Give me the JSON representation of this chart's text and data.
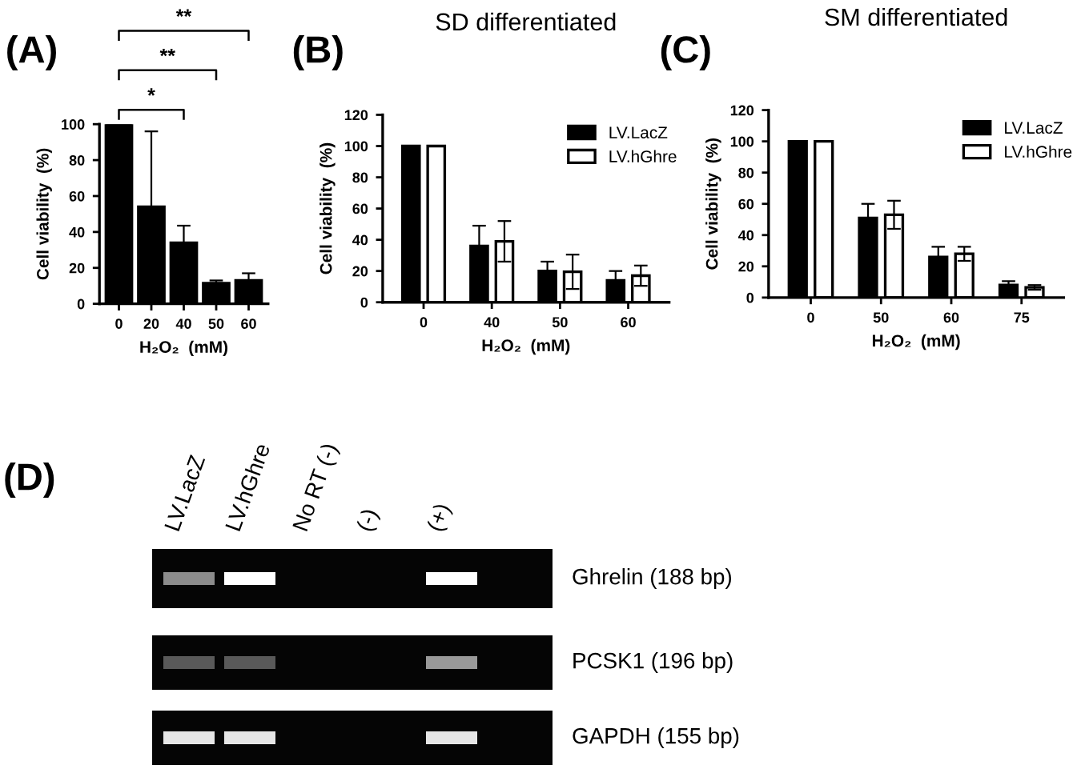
{
  "chart_data": [
    {
      "type": "bar",
      "categories": [
        "0",
        "20",
        "40",
        "50",
        "60"
      ],
      "values": [
        100,
        54,
        34,
        11.5,
        13
      ],
      "color": "#000000",
      "errors": [
        null,
        [
          54,
          96
        ],
        [
          34,
          43.5
        ],
        [
          11.5,
          13
        ],
        [
          13,
          17
        ]
      ],
      "xlabel": "H₂O₂  (mM)",
      "ylabel": "Cell viability  (%)",
      "ylim": [
        0,
        100
      ],
      "yticks": [
        0,
        20,
        40,
        60,
        80,
        100
      ],
      "annotations": [
        "(A)",
        "*",
        "**",
        "**"
      ],
      "grid": false,
      "legend": false
    },
    {
      "type": "bar",
      "title": "SD differentiated",
      "categories": [
        "0",
        "40",
        "50",
        "60"
      ],
      "series": [
        {
          "name": "LV.LacZ",
          "color": "#000000",
          "values": [
            100,
            36,
            20,
            14
          ],
          "errors": [
            null,
            13,
            6,
            6
          ]
        },
        {
          "name": "LV.hGhre",
          "color": "#ffffff",
          "values": [
            100,
            39,
            19.5,
            17
          ],
          "errors": [
            null,
            13,
            11,
            6.5
          ]
        }
      ],
      "xlabel": "H₂O₂  (mM)",
      "ylabel": "Cell viability  (%)",
      "ylim": [
        0,
        120
      ],
      "yticks": [
        0,
        20,
        40,
        60,
        80,
        100,
        120
      ],
      "annotations": [
        "(B)"
      ],
      "grid": false,
      "legend": "top right"
    },
    {
      "type": "bar",
      "title": "SM differentiated",
      "categories": [
        "0",
        "50",
        "60",
        "75"
      ],
      "series": [
        {
          "name": "LV.LacZ",
          "color": "#000000",
          "values": [
            100,
            51,
            26,
            8
          ],
          "errors": [
            null,
            9,
            6.5,
            2.5
          ]
        },
        {
          "name": "LV.hGhre",
          "color": "#ffffff",
          "values": [
            100,
            53,
            28,
            6.5
          ],
          "errors": [
            null,
            9,
            4.5,
            1.5
          ]
        }
      ],
      "xlabel": "H₂O₂  (mM)",
      "ylabel": "Cell viability  (%)",
      "ylim": [
        0,
        120
      ],
      "yticks": [
        0,
        20,
        40,
        60,
        80,
        100,
        120
      ],
      "annotations": [
        "(C)"
      ],
      "grid": false,
      "legend": "top right"
    },
    {
      "type": "other",
      "annotations": [
        "(D)",
        "LV.LacZ",
        "LV.hGhre",
        "No RT (-)",
        "(-)",
        "(+)",
        "Ghrelin (188 bp)",
        "PCSK1 (196 bp)",
        "GAPDH (155 bp)"
      ]
    }
  ]
}
